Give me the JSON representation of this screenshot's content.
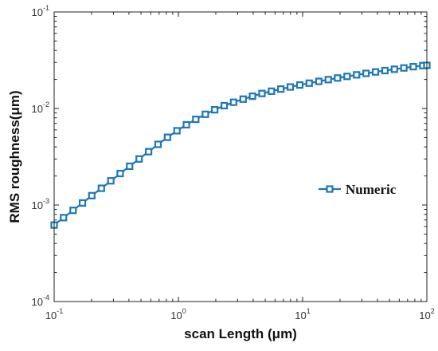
{
  "chart_data": {
    "type": "line",
    "title": "",
    "xlabel": "scan  Length (μm)",
    "ylabel": "RMS roughness(μm)",
    "xscale": "log",
    "yscale": "log",
    "xlim": [
      0.1,
      100
    ],
    "ylim": [
      0.0001,
      0.1
    ],
    "grid": false,
    "legend": {
      "position": "center-right",
      "entries": [
        "Numeric"
      ]
    },
    "x_ticks": [
      {
        "base": "10",
        "exp": "-1"
      },
      {
        "base": "10",
        "exp": "0"
      },
      {
        "base": "10",
        "exp": "1"
      },
      {
        "base": "10",
        "exp": "2"
      }
    ],
    "y_ticks": [
      {
        "base": "10",
        "exp": "-4"
      },
      {
        "base": "10",
        "exp": "-3"
      },
      {
        "base": "10",
        "exp": "-2"
      },
      {
        "base": "10",
        "exp": "-1"
      }
    ],
    "series": [
      {
        "name": "Numeric",
        "color": "#1f77b4",
        "marker": "square-open",
        "x": [
          0.1,
          0.119,
          0.142,
          0.169,
          0.201,
          0.24,
          0.286,
          0.34,
          0.405,
          0.483,
          0.576,
          0.686,
          0.817,
          0.974,
          1.16,
          1.38,
          1.65,
          1.96,
          2.34,
          2.78,
          3.32,
          3.95,
          4.71,
          5.61,
          6.68,
          7.96,
          9.49,
          11.3,
          13.5,
          16.1,
          19.1,
          22.8,
          27.2,
          32.4,
          38.6,
          46.0,
          54.8,
          65.3,
          77.8,
          92.7,
          100
        ],
        "y": [
          0.00062,
          0.00074,
          0.00088,
          0.00105,
          0.00125,
          0.00149,
          0.00178,
          0.00212,
          0.00252,
          0.003,
          0.00357,
          0.00425,
          0.00503,
          0.00588,
          0.00678,
          0.00772,
          0.0087,
          0.0097,
          0.0107,
          0.0116,
          0.0125,
          0.0134,
          0.0143,
          0.0151,
          0.0159,
          0.0167,
          0.0175,
          0.0183,
          0.0191,
          0.0199,
          0.0207,
          0.0215,
          0.0223,
          0.0231,
          0.0239,
          0.0247,
          0.0255,
          0.0263,
          0.0271,
          0.0278,
          0.028
        ]
      }
    ]
  }
}
